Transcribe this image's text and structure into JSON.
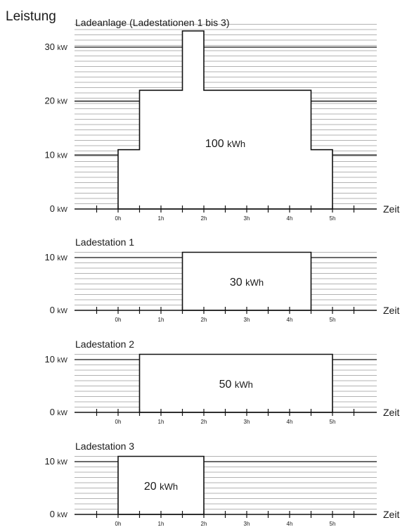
{
  "ylabel": "Leistung",
  "xlabel": "Zeit",
  "x_tick_labels": [
    "0h",
    "1h",
    "2h",
    "3h",
    "4h",
    "5h"
  ],
  "colors": {
    "grid": "#9a9a9a",
    "line": "#111111",
    "fill": "#ffffff",
    "text": "#1a1a1a"
  },
  "chart_data": [
    {
      "type": "area",
      "title": "Ladeanlage (Ladestationen 1 bis 3)",
      "xlabel": "Zeit",
      "ylabel": "Leistung",
      "y_unit": "kW",
      "x_unit": "h",
      "x_range": [
        -1,
        6
      ],
      "ylim": [
        0,
        30
      ],
      "y_ticks": [
        0,
        10,
        20,
        30
      ],
      "y_tick_labels": [
        {
          "number": "0",
          "unit": "kW"
        },
        {
          "number": "10",
          "unit": "kW"
        },
        {
          "number": "20",
          "unit": "kW"
        },
        {
          "number": "30",
          "unit": "kW"
        }
      ],
      "x_ticks": [
        0,
        1,
        2,
        3,
        4,
        5
      ],
      "x_tick_labels": [
        "0h",
        "1h",
        "2h",
        "3h",
        "4h",
        "5h"
      ],
      "grid": true,
      "profile": [
        {
          "start": 0,
          "end": 0.5,
          "power": 11
        },
        {
          "start": 0.5,
          "end": 1.5,
          "power": 22
        },
        {
          "start": 1.5,
          "end": 2,
          "power": 33
        },
        {
          "start": 2,
          "end": 4.5,
          "power": 22
        },
        {
          "start": 4.5,
          "end": 5,
          "power": 11
        }
      ],
      "energy_label": {
        "number": "100",
        "unit": "kWh"
      }
    },
    {
      "type": "area",
      "title": "Ladestation 1",
      "xlabel": "Zeit",
      "y_unit": "kW",
      "x_unit": "h",
      "x_range": [
        -1,
        6
      ],
      "ylim": [
        0,
        10
      ],
      "y_ticks": [
        0,
        10
      ],
      "y_tick_labels": [
        {
          "number": "0",
          "unit": "kW"
        },
        {
          "number": "10",
          "unit": "kW"
        }
      ],
      "x_ticks": [
        0,
        1,
        2,
        3,
        4,
        5
      ],
      "x_tick_labels": [
        "0h",
        "1h",
        "2h",
        "3h",
        "4h",
        "5h"
      ],
      "grid": true,
      "profile": [
        {
          "start": 1.5,
          "end": 4.5,
          "power": 11
        }
      ],
      "energy_label": {
        "number": "30",
        "unit": "kWh"
      }
    },
    {
      "type": "area",
      "title": "Ladestation 2",
      "xlabel": "Zeit",
      "y_unit": "kW",
      "x_unit": "h",
      "x_range": [
        -1,
        6
      ],
      "ylim": [
        0,
        10
      ],
      "y_ticks": [
        0,
        10
      ],
      "y_tick_labels": [
        {
          "number": "0",
          "unit": "kW"
        },
        {
          "number": "10",
          "unit": "kW"
        }
      ],
      "x_ticks": [
        0,
        1,
        2,
        3,
        4,
        5
      ],
      "x_tick_labels": [
        "0h",
        "1h",
        "2h",
        "3h",
        "4h",
        "5h"
      ],
      "grid": true,
      "profile": [
        {
          "start": 0.5,
          "end": 5,
          "power": 11
        }
      ],
      "energy_label": {
        "number": "50",
        "unit": "kWh"
      }
    },
    {
      "type": "area",
      "title": "Ladestation 3",
      "xlabel": "Zeit",
      "y_unit": "kW",
      "x_unit": "h",
      "x_range": [
        -1,
        6
      ],
      "ylim": [
        0,
        10
      ],
      "y_ticks": [
        0,
        10
      ],
      "y_tick_labels": [
        {
          "number": "0",
          "unit": "kW"
        },
        {
          "number": "10",
          "unit": "kW"
        }
      ],
      "x_ticks": [
        0,
        1,
        2,
        3,
        4,
        5
      ],
      "x_tick_labels": [
        "0h",
        "1h",
        "2h",
        "3h",
        "4h",
        "5h"
      ],
      "grid": true,
      "profile": [
        {
          "start": 0,
          "end": 2,
          "power": 11
        }
      ],
      "energy_label": {
        "number": "20",
        "unit": "kWh"
      }
    }
  ]
}
